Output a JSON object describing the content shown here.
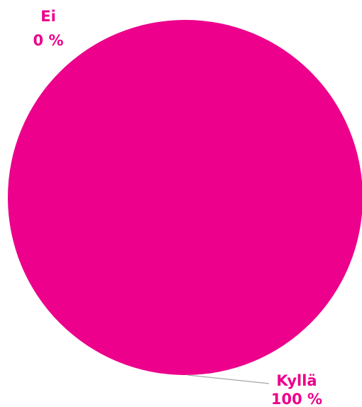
{
  "chart_data": {
    "type": "pie",
    "slices": [
      {
        "label": "Kyllä",
        "value": 100,
        "value_label": "100 %",
        "color": "#ec008c"
      },
      {
        "label": "Ei",
        "value": 0,
        "value_label": "0 %",
        "color": "#ec008c"
      }
    ],
    "label_color": "#ec008c",
    "leader_line_color": "#a6a6a6"
  }
}
